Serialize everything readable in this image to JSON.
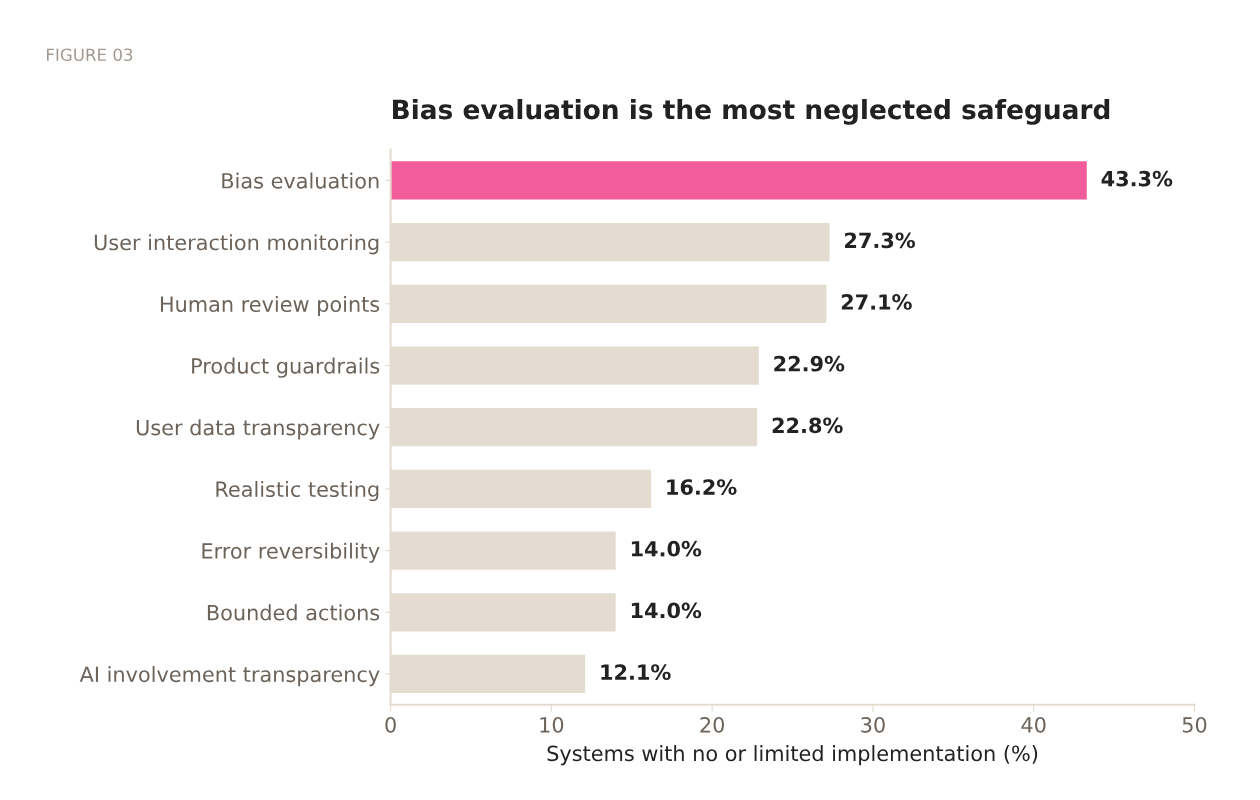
{
  "chart_data": {
    "type": "bar",
    "orientation": "horizontal",
    "title": "Bias evaluation is the most neglected safeguard",
    "xlabel": "Systems with no or limited implementation (%)",
    "annotations": [
      "FIGURE 03"
    ],
    "categories": [
      "Bias evaluation",
      "User interaction monitoring",
      "Human review points",
      "Product guardrails",
      "User data transparency",
      "Realistic testing",
      "Error reversibility",
      "Bounded actions",
      "AI involvement transparency"
    ],
    "values": [
      43.3,
      27.3,
      27.1,
      22.9,
      22.8,
      16.2,
      14.0,
      14.0,
      12.1
    ],
    "colors": [
      "#f25c9a",
      "#e4dcd0",
      "#e4dcd0",
      "#e4dcd0",
      "#e4dcd0",
      "#e4dcd0",
      "#e4dcd0",
      "#e4dcd0",
      "#e4dcd0"
    ],
    "value_labels": [
      "43.3%",
      "27.3%",
      "27.1%",
      "22.9%",
      "22.8%",
      "16.2%",
      "14.0%",
      "14.0%",
      "12.1%"
    ],
    "xlim": [
      0,
      50
    ],
    "xticks": [
      0,
      10,
      20,
      30,
      40,
      50
    ],
    "grid": false,
    "legend": false
  }
}
